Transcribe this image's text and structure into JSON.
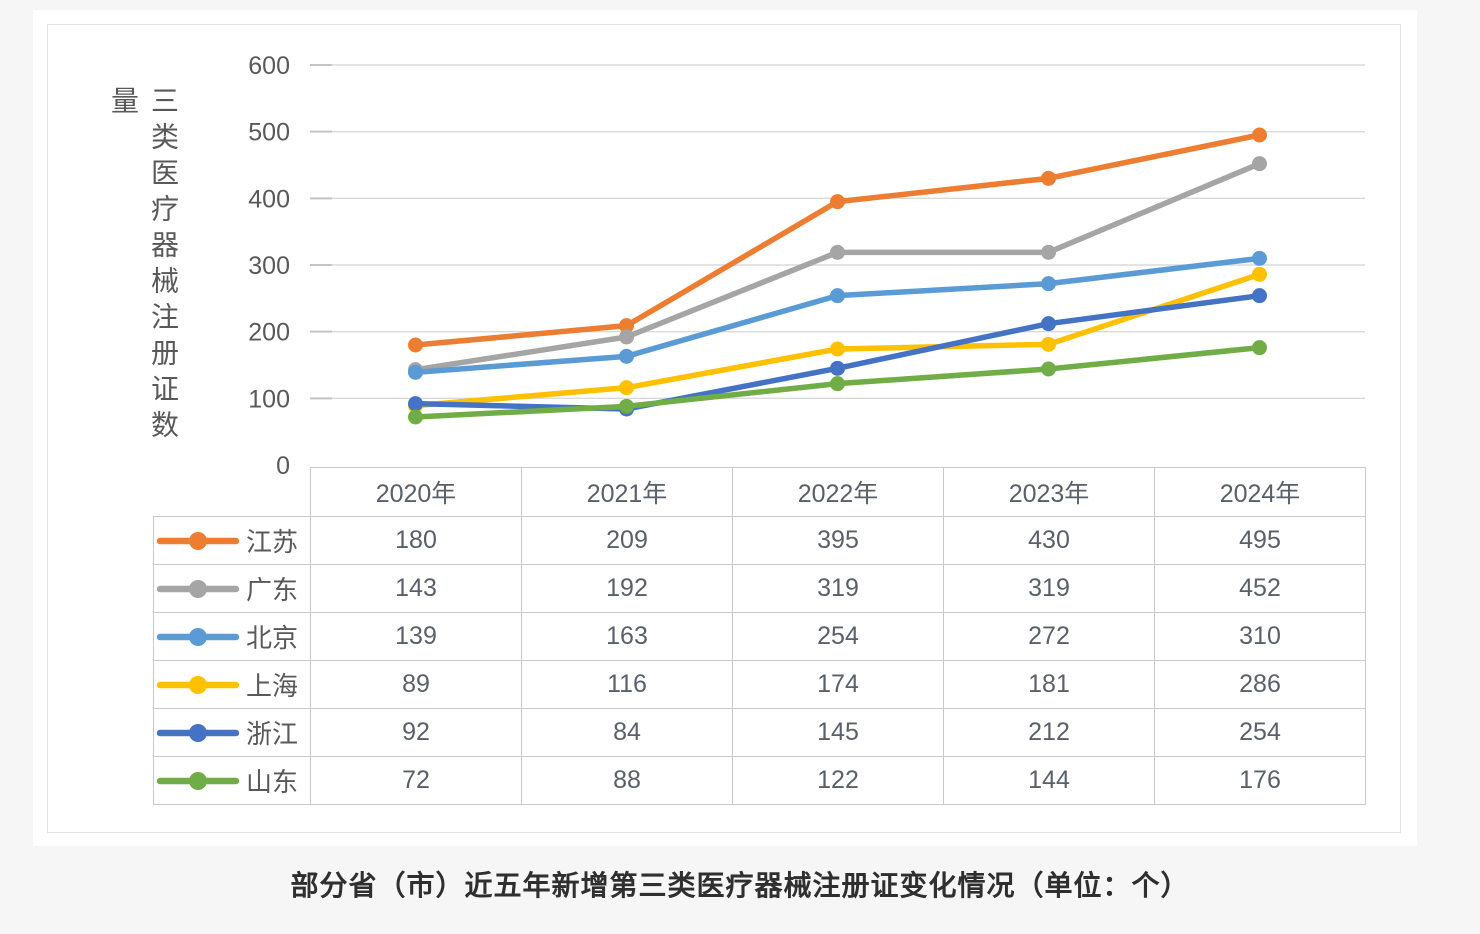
{
  "caption": "部分省（市）近五年新增第三类医疗器械注册证变化情况（单位：个）",
  "chart_data": {
    "type": "line",
    "y_axis_title": "三类医疗器械注册证数量",
    "categories": [
      "2020年",
      "2021年",
      "2022年",
      "2023年",
      "2024年"
    ],
    "series": [
      {
        "name": "江苏",
        "color": "#ED7D31",
        "values": [
          180,
          209,
          395,
          430,
          495
        ]
      },
      {
        "name": "广东",
        "color": "#A5A5A5",
        "values": [
          143,
          192,
          319,
          319,
          452
        ]
      },
      {
        "name": "北京",
        "color": "#5B9BD5",
        "values": [
          139,
          163,
          254,
          272,
          310
        ]
      },
      {
        "name": "上海",
        "color": "#FFC000",
        "values": [
          89,
          116,
          174,
          181,
          286
        ]
      },
      {
        "name": "浙江",
        "color": "#4472C4",
        "values": [
          92,
          84,
          145,
          212,
          254
        ]
      },
      {
        "name": "山东",
        "color": "#70AD47",
        "values": [
          72,
          88,
          122,
          144,
          176
        ]
      }
    ],
    "y_axis": {
      "min": 0,
      "max": 600,
      "step": 100,
      "tick_labels": [
        "0",
        "100",
        "200",
        "300",
        "400",
        "500",
        "600"
      ]
    },
    "grid": true,
    "legend_position": "table-left",
    "gridline_color": "#dadada",
    "tick_color": "#c3c3c3",
    "tick_label_color": "#595959"
  }
}
